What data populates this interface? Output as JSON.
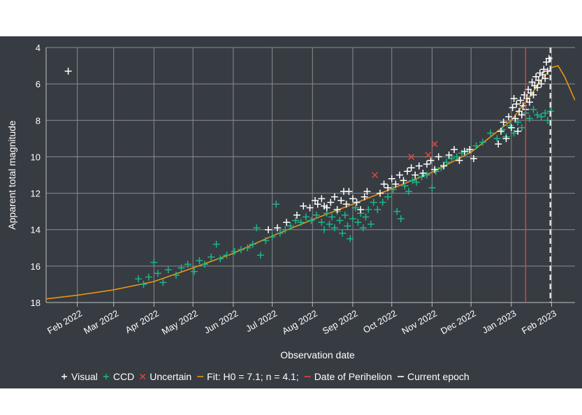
{
  "chart_data": {
    "type": "scatter",
    "xlabel": "Observation date",
    "ylabel": "Apparent total magnitude",
    "ylim": [
      18,
      4
    ],
    "y_inverted": true,
    "xlim": [
      "2022-01-08",
      "2023-02-19"
    ],
    "grid": true,
    "legend_placement": "bottom",
    "x_tick_labels": [
      "Feb 2022",
      "Mar 2022",
      "Apr 2022",
      "May 2022",
      "Jun 2022",
      "Jul 2022",
      "Aug 2022",
      "Sep 2022",
      "Oct 2022",
      "Nov 2022",
      "Dec 2022",
      "Jan 2023",
      "Feb 2023"
    ],
    "x_tick_dates": [
      "2022-02-01",
      "2022-03-01",
      "2022-04-01",
      "2022-05-01",
      "2022-06-01",
      "2022-07-01",
      "2022-08-01",
      "2022-09-01",
      "2022-10-01",
      "2022-11-01",
      "2022-12-01",
      "2023-01-01",
      "2023-02-01"
    ],
    "y_ticks": [
      4,
      6,
      8,
      10,
      12,
      14,
      16,
      18
    ],
    "legend": [
      {
        "label": "Visual",
        "marker": "+",
        "color": "#ffffff"
      },
      {
        "label": "CCD",
        "marker": "+",
        "color": "#1db58a"
      },
      {
        "label": "Uncertain",
        "marker": "x",
        "color": "#e0473b"
      },
      {
        "label": "Fit: H0 = 7.1; n = 4.1;",
        "marker": "line",
        "color": "#e8960f"
      },
      {
        "label": "Date of Perihelion",
        "marker": "line",
        "color": "#e0473b"
      },
      {
        "label": "Current epoch",
        "marker": "dash",
        "color": "#ffffff"
      }
    ],
    "perihelion_date": "2023-01-12",
    "current_epoch_date": "2023-01-31",
    "fit_curve": [
      {
        "x": "2022-01-08",
        "y": 17.8
      },
      {
        "x": "2022-02-01",
        "y": 17.6
      },
      {
        "x": "2022-03-01",
        "y": 17.3
      },
      {
        "x": "2022-04-01",
        "y": 16.85
      },
      {
        "x": "2022-05-01",
        "y": 16.1
      },
      {
        "x": "2022-06-01",
        "y": 15.3
      },
      {
        "x": "2022-07-01",
        "y": 14.35
      },
      {
        "x": "2022-08-01",
        "y": 13.45
      },
      {
        "x": "2022-09-01",
        "y": 12.6
      },
      {
        "x": "2022-10-01",
        "y": 11.75
      },
      {
        "x": "2022-11-01",
        "y": 10.85
      },
      {
        "x": "2022-12-01",
        "y": 9.75
      },
      {
        "x": "2023-01-01",
        "y": 8.0
      },
      {
        "x": "2023-01-15",
        "y": 6.7
      },
      {
        "x": "2023-01-25",
        "y": 5.7
      },
      {
        "x": "2023-02-01",
        "y": 5.1
      },
      {
        "x": "2023-02-06",
        "y": 5.0
      },
      {
        "x": "2023-02-11",
        "y": 5.6
      },
      {
        "x": "2023-02-19",
        "y": 6.9
      }
    ],
    "series": [
      {
        "name": "Visual",
        "color": "#ffffff",
        "marker": "+",
        "points": [
          {
            "x": "2022-01-25",
            "y": 5.3
          },
          {
            "x": "2022-06-28",
            "y": 14.0
          },
          {
            "x": "2022-07-05",
            "y": 13.9
          },
          {
            "x": "2022-07-12",
            "y": 13.6
          },
          {
            "x": "2022-07-20",
            "y": 13.2
          },
          {
            "x": "2022-07-25",
            "y": 12.7
          },
          {
            "x": "2022-07-30",
            "y": 12.8
          },
          {
            "x": "2022-08-03",
            "y": 12.4
          },
          {
            "x": "2022-08-05",
            "y": 12.6
          },
          {
            "x": "2022-08-08",
            "y": 12.3
          },
          {
            "x": "2022-08-10",
            "y": 12.7
          },
          {
            "x": "2022-08-12",
            "y": 12.8
          },
          {
            "x": "2022-08-15",
            "y": 12.5
          },
          {
            "x": "2022-08-18",
            "y": 12.2
          },
          {
            "x": "2022-08-20",
            "y": 12.9
          },
          {
            "x": "2022-08-23",
            "y": 12.4
          },
          {
            "x": "2022-08-25",
            "y": 11.9
          },
          {
            "x": "2022-08-27",
            "y": 12.6
          },
          {
            "x": "2022-08-29",
            "y": 11.9
          },
          {
            "x": "2022-09-01",
            "y": 12.3
          },
          {
            "x": "2022-09-04",
            "y": 12.5
          },
          {
            "x": "2022-09-07",
            "y": 12.9
          },
          {
            "x": "2022-09-10",
            "y": 12.2
          },
          {
            "x": "2022-09-12",
            "y": 11.9
          },
          {
            "x": "2022-09-22",
            "y": 12.0
          },
          {
            "x": "2022-09-25",
            "y": 11.5
          },
          {
            "x": "2022-09-28",
            "y": 11.7
          },
          {
            "x": "2022-10-01",
            "y": 11.2
          },
          {
            "x": "2022-10-04",
            "y": 11.5
          },
          {
            "x": "2022-10-07",
            "y": 11.0
          },
          {
            "x": "2022-10-10",
            "y": 11.3
          },
          {
            "x": "2022-10-13",
            "y": 10.8
          },
          {
            "x": "2022-10-16",
            "y": 10.6
          },
          {
            "x": "2022-10-19",
            "y": 11.0
          },
          {
            "x": "2022-10-22",
            "y": 10.5
          },
          {
            "x": "2022-10-25",
            "y": 10.9
          },
          {
            "x": "2022-10-28",
            "y": 10.4
          },
          {
            "x": "2022-10-31",
            "y": 10.2
          },
          {
            "x": "2022-11-03",
            "y": 10.7
          },
          {
            "x": "2022-11-06",
            "y": 10.0
          },
          {
            "x": "2022-11-10",
            "y": 10.5
          },
          {
            "x": "2022-11-14",
            "y": 9.9
          },
          {
            "x": "2022-11-18",
            "y": 9.6
          },
          {
            "x": "2022-11-22",
            "y": 10.2
          },
          {
            "x": "2022-11-26",
            "y": 9.7
          },
          {
            "x": "2022-11-30",
            "y": 9.6
          },
          {
            "x": "2022-12-03",
            "y": 10.1
          },
          {
            "x": "2022-12-22",
            "y": 9.3
          },
          {
            "x": "2022-12-24",
            "y": 8.6
          },
          {
            "x": "2022-12-26",
            "y": 8.1
          },
          {
            "x": "2022-12-28",
            "y": 9.0
          },
          {
            "x": "2022-12-30",
            "y": 7.8
          },
          {
            "x": "2023-01-01",
            "y": 8.4
          },
          {
            "x": "2023-01-02",
            "y": 7.3
          },
          {
            "x": "2023-01-03",
            "y": 6.8
          },
          {
            "x": "2023-01-04",
            "y": 7.9
          },
          {
            "x": "2023-01-05",
            "y": 7.1
          },
          {
            "x": "2023-01-06",
            "y": 8.6
          },
          {
            "x": "2023-01-07",
            "y": 7.5
          },
          {
            "x": "2023-01-08",
            "y": 6.9
          },
          {
            "x": "2023-01-09",
            "y": 7.7
          },
          {
            "x": "2023-01-10",
            "y": 7.2
          },
          {
            "x": "2023-01-11",
            "y": 6.6
          },
          {
            "x": "2023-01-12",
            "y": 7.4
          },
          {
            "x": "2023-01-13",
            "y": 6.8
          },
          {
            "x": "2023-01-14",
            "y": 6.3
          },
          {
            "x": "2023-01-15",
            "y": 7.0
          },
          {
            "x": "2023-01-16",
            "y": 6.5
          },
          {
            "x": "2023-01-17",
            "y": 5.9
          },
          {
            "x": "2023-01-18",
            "y": 6.6
          },
          {
            "x": "2023-01-19",
            "y": 6.1
          },
          {
            "x": "2023-01-20",
            "y": 5.6
          },
          {
            "x": "2023-01-21",
            "y": 6.2
          },
          {
            "x": "2023-01-22",
            "y": 5.8
          },
          {
            "x": "2023-01-23",
            "y": 5.4
          },
          {
            "x": "2023-01-24",
            "y": 6.0
          },
          {
            "x": "2023-01-25",
            "y": 5.5
          },
          {
            "x": "2023-01-26",
            "y": 5.2
          },
          {
            "x": "2023-01-27",
            "y": 5.7
          },
          {
            "x": "2023-01-28",
            "y": 4.8
          },
          {
            "x": "2023-01-29",
            "y": 5.3
          },
          {
            "x": "2023-01-30",
            "y": 4.6
          }
        ]
      },
      {
        "name": "CCD",
        "color": "#1db58a",
        "marker": "+",
        "points": [
          {
            "x": "2022-03-20",
            "y": 16.7
          },
          {
            "x": "2022-03-24",
            "y": 17.0
          },
          {
            "x": "2022-03-28",
            "y": 16.6
          },
          {
            "x": "2022-04-01",
            "y": 15.8
          },
          {
            "x": "2022-04-04",
            "y": 16.4
          },
          {
            "x": "2022-04-08",
            "y": 16.9
          },
          {
            "x": "2022-04-12",
            "y": 16.2
          },
          {
            "x": "2022-04-18",
            "y": 16.5
          },
          {
            "x": "2022-04-22",
            "y": 16.1
          },
          {
            "x": "2022-04-27",
            "y": 15.9
          },
          {
            "x": "2022-05-02",
            "y": 16.3
          },
          {
            "x": "2022-05-06",
            "y": 15.7
          },
          {
            "x": "2022-05-10",
            "y": 15.9
          },
          {
            "x": "2022-05-15",
            "y": 15.5
          },
          {
            "x": "2022-05-19",
            "y": 14.8
          },
          {
            "x": "2022-05-22",
            "y": 15.6
          },
          {
            "x": "2022-05-27",
            "y": 15.4
          },
          {
            "x": "2022-06-02",
            "y": 15.2
          },
          {
            "x": "2022-06-07",
            "y": 15.1
          },
          {
            "x": "2022-06-12",
            "y": 15.0
          },
          {
            "x": "2022-06-16",
            "y": 14.8
          },
          {
            "x": "2022-06-19",
            "y": 13.9
          },
          {
            "x": "2022-06-22",
            "y": 15.4
          },
          {
            "x": "2022-06-26",
            "y": 14.6
          },
          {
            "x": "2022-07-01",
            "y": 14.4
          },
          {
            "x": "2022-07-04",
            "y": 12.6
          },
          {
            "x": "2022-07-07",
            "y": 14.2
          },
          {
            "x": "2022-07-11",
            "y": 14.0
          },
          {
            "x": "2022-07-15",
            "y": 13.8
          },
          {
            "x": "2022-07-19",
            "y": 13.5
          },
          {
            "x": "2022-07-23",
            "y": 13.6
          },
          {
            "x": "2022-07-27",
            "y": 13.3
          },
          {
            "x": "2022-07-31",
            "y": 13.5
          },
          {
            "x": "2022-08-04",
            "y": 13.2
          },
          {
            "x": "2022-08-08",
            "y": 13.6
          },
          {
            "x": "2022-08-10",
            "y": 14.0
          },
          {
            "x": "2022-08-12",
            "y": 13.1
          },
          {
            "x": "2022-08-14",
            "y": 13.7
          },
          {
            "x": "2022-08-16",
            "y": 13.3
          },
          {
            "x": "2022-08-18",
            "y": 13.9
          },
          {
            "x": "2022-08-20",
            "y": 13.0
          },
          {
            "x": "2022-08-22",
            "y": 13.5
          },
          {
            "x": "2022-08-24",
            "y": 14.2
          },
          {
            "x": "2022-08-26",
            "y": 13.2
          },
          {
            "x": "2022-08-28",
            "y": 13.8
          },
          {
            "x": "2022-08-30",
            "y": 14.5
          },
          {
            "x": "2022-09-01",
            "y": 13.4
          },
          {
            "x": "2022-09-03",
            "y": 12.8
          },
          {
            "x": "2022-09-05",
            "y": 13.6
          },
          {
            "x": "2022-09-07",
            "y": 13.1
          },
          {
            "x": "2022-09-09",
            "y": 13.9
          },
          {
            "x": "2022-09-11",
            "y": 13.3
          },
          {
            "x": "2022-09-13",
            "y": 12.9
          },
          {
            "x": "2022-09-15",
            "y": 13.7
          },
          {
            "x": "2022-09-17",
            "y": 12.5
          },
          {
            "x": "2022-09-20",
            "y": 12.9
          },
          {
            "x": "2022-09-24",
            "y": 12.5
          },
          {
            "x": "2022-09-28",
            "y": 12.2
          },
          {
            "x": "2022-10-02",
            "y": 11.8
          },
          {
            "x": "2022-10-05",
            "y": 13.0
          },
          {
            "x": "2022-10-08",
            "y": 13.4
          },
          {
            "x": "2022-10-11",
            "y": 11.6
          },
          {
            "x": "2022-10-14",
            "y": 11.9
          },
          {
            "x": "2022-10-17",
            "y": 11.3
          },
          {
            "x": "2022-10-20",
            "y": 11.4
          },
          {
            "x": "2022-10-24",
            "y": 11.1
          },
          {
            "x": "2022-10-28",
            "y": 11.0
          },
          {
            "x": "2022-11-01",
            "y": 11.7
          },
          {
            "x": "2022-11-04",
            "y": 10.8
          },
          {
            "x": "2022-11-08",
            "y": 10.6
          },
          {
            "x": "2022-11-12",
            "y": 10.3
          },
          {
            "x": "2022-11-16",
            "y": 10.1
          },
          {
            "x": "2022-11-20",
            "y": 10.0
          },
          {
            "x": "2022-11-24",
            "y": 9.8
          },
          {
            "x": "2022-11-28",
            "y": 9.7
          },
          {
            "x": "2022-12-05",
            "y": 9.4
          },
          {
            "x": "2022-12-10",
            "y": 9.2
          },
          {
            "x": "2022-12-16",
            "y": 8.7
          },
          {
            "x": "2022-12-21",
            "y": 9.0
          },
          {
            "x": "2022-12-25",
            "y": 8.5
          },
          {
            "x": "2022-12-28",
            "y": 8.9
          },
          {
            "x": "2022-12-31",
            "y": 8.3
          },
          {
            "x": "2023-01-03",
            "y": 8.7
          },
          {
            "x": "2023-01-06",
            "y": 8.1
          },
          {
            "x": "2023-01-09",
            "y": 8.4
          },
          {
            "x": "2023-01-12",
            "y": 7.6
          },
          {
            "x": "2023-01-15",
            "y": 7.9
          },
          {
            "x": "2023-01-18",
            "y": 7.4
          },
          {
            "x": "2023-01-21",
            "y": 7.7
          },
          {
            "x": "2023-01-24",
            "y": 7.8
          },
          {
            "x": "2023-01-27",
            "y": 7.6
          },
          {
            "x": "2023-01-29",
            "y": 8.0
          },
          {
            "x": "2023-01-31",
            "y": 7.5
          }
        ]
      },
      {
        "name": "Uncertain",
        "color": "#e0473b",
        "marker": "x",
        "points": [
          {
            "x": "2022-09-18",
            "y": 11.0
          },
          {
            "x": "2022-10-16",
            "y": 10.0
          },
          {
            "x": "2022-11-03",
            "y": 9.3
          },
          {
            "x": "2022-10-29",
            "y": 9.9
          }
        ]
      }
    ]
  }
}
